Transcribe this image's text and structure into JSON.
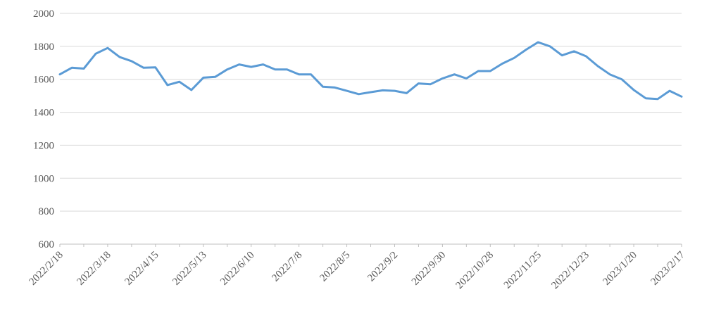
{
  "chart_data": {
    "type": "line",
    "title": "",
    "xlabel": "",
    "ylabel": "",
    "legend": "none",
    "grid": "horizontal",
    "ylim": [
      600,
      2000
    ],
    "ytick_interval": 200,
    "ytick_labels": [
      "2000",
      "1800",
      "1600",
      "1400",
      "1200",
      "1000",
      "800",
      "600"
    ],
    "x_tick_labels": [
      "2022/2/18",
      "2022/3/18",
      "2022/4/15",
      "2022/5/13",
      "2022/6/10",
      "2022/7/8",
      "2022/8/5",
      "2022/9/2",
      "2022/9/30",
      "2022/10/28",
      "2022/11/25",
      "2022/12/23",
      "2023/1/20",
      "2023/2/17"
    ],
    "label_every_n_points": 4,
    "minor_tick_every_n_points": 2,
    "series": [
      {
        "name": "series-1",
        "color": "#5B9BD5",
        "values": [
          1630,
          1670,
          1665,
          1755,
          1790,
          1735,
          1710,
          1670,
          1672,
          1565,
          1585,
          1535,
          1610,
          1615,
          1660,
          1690,
          1675,
          1690,
          1660,
          1660,
          1630,
          1630,
          1555,
          1550,
          1530,
          1510,
          1522,
          1533,
          1530,
          1516,
          1575,
          1570,
          1605,
          1630,
          1605,
          1650,
          1650,
          1695,
          1730,
          1780,
          1825,
          1800,
          1745,
          1770,
          1740,
          1680,
          1630,
          1600,
          1535,
          1485,
          1480,
          1530,
          1495
        ]
      }
    ]
  },
  "colors": {
    "line": "#5B9BD5",
    "gridline": "#D9D9D9",
    "axis": "#BFBFBF",
    "tick_label": "#595959",
    "background": "#FFFFFF"
  }
}
